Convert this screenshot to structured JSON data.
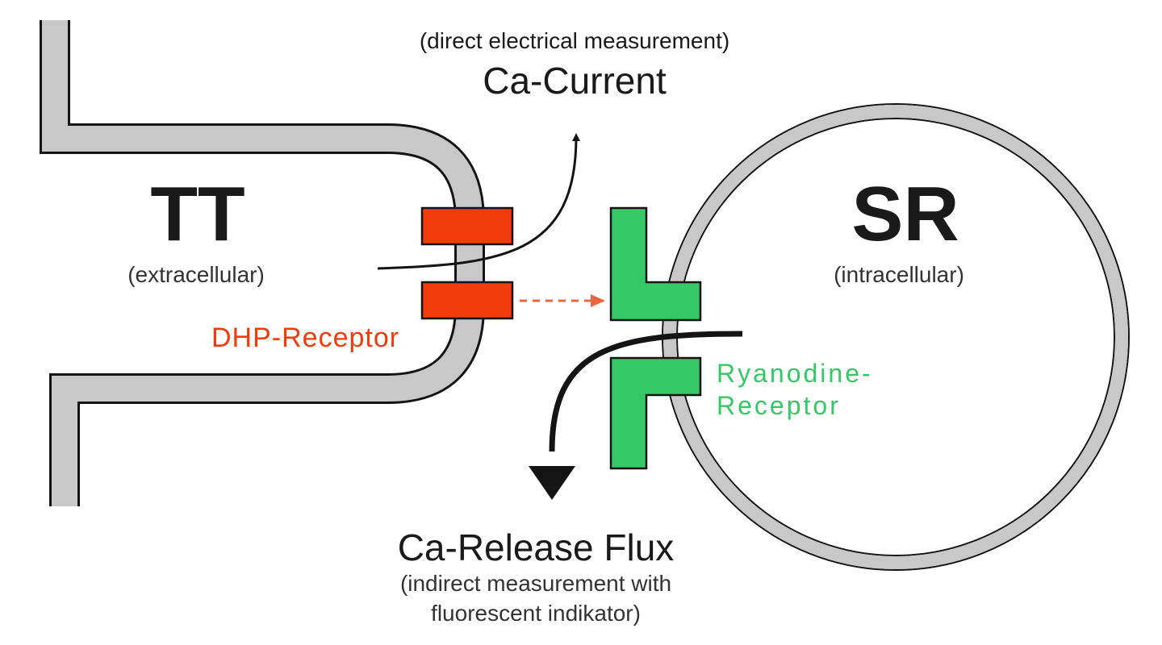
{
  "colors": {
    "membrane_fill": "#c8c8c8",
    "membrane_stroke": "#141414",
    "dhp_receptor": "#f03c0a",
    "ryanodine_receptor": "#35c866",
    "arrow": "#141414",
    "dashed_arrow": "#e8673f"
  },
  "labels": {
    "tt": "TT",
    "tt_sub": "(extracellular)",
    "sr": "SR",
    "sr_sub": "(intracellular)",
    "ca_current_note": "(direct electrical measurement)",
    "ca_current": "Ca-Current",
    "dhp_receptor": "DHP-Receptor",
    "ryanodine_line1": "Ryanodine-",
    "ryanodine_line2": "Receptor",
    "release_flux": "Ca-Release Flux",
    "release_note_line1": "(indirect measurement with",
    "release_note_line2": "fluorescent indikator)"
  }
}
